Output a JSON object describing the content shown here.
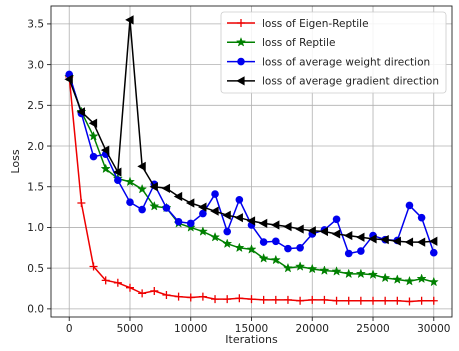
{
  "chart_data": {
    "type": "line",
    "title": "",
    "xlabel": "Iterations",
    "ylabel": "Loss",
    "xlim": [
      -1500,
      31500
    ],
    "ylim": [
      -0.1,
      3.72
    ],
    "xticks": [
      0,
      5000,
      10000,
      15000,
      20000,
      25000,
      30000
    ],
    "yticks": [
      0.0,
      0.5,
      1.0,
      1.5,
      2.0,
      2.5,
      3.0,
      3.5
    ],
    "grid": true,
    "legend_position": "top-right",
    "series": [
      {
        "name": "loss of Eigen-Reptile",
        "color": "#ee0000",
        "marker": "plus",
        "x": [
          0,
          1000,
          2000,
          3000,
          4000,
          5000,
          6000,
          7000,
          8000,
          9000,
          10000,
          11000,
          12000,
          13000,
          14000,
          15000,
          16000,
          17000,
          18000,
          19000,
          20000,
          21000,
          22000,
          23000,
          24000,
          25000,
          26000,
          27000,
          28000,
          29000,
          30000
        ],
        "y": [
          2.85,
          1.3,
          0.52,
          0.35,
          0.32,
          0.26,
          0.19,
          0.22,
          0.17,
          0.15,
          0.14,
          0.15,
          0.12,
          0.12,
          0.13,
          0.12,
          0.11,
          0.11,
          0.11,
          0.1,
          0.11,
          0.11,
          0.1,
          0.1,
          0.1,
          0.1,
          0.1,
          0.1,
          0.09,
          0.1,
          0.1
        ]
      },
      {
        "name": "loss of Reptile",
        "color": "#008000",
        "marker": "star",
        "x": [
          0,
          1000,
          2000,
          3000,
          4000,
          5000,
          6000,
          7000,
          8000,
          9000,
          10000,
          11000,
          12000,
          13000,
          14000,
          15000,
          16000,
          17000,
          18000,
          19000,
          20000,
          21000,
          22000,
          23000,
          24000,
          25000,
          26000,
          27000,
          28000,
          29000,
          30000
        ],
        "y": [
          2.85,
          2.42,
          2.12,
          1.72,
          1.6,
          1.56,
          1.47,
          1.26,
          1.24,
          1.05,
          1.0,
          0.95,
          0.88,
          0.8,
          0.75,
          0.73,
          0.62,
          0.6,
          0.5,
          0.52,
          0.49,
          0.47,
          0.46,
          0.43,
          0.43,
          0.42,
          0.38,
          0.36,
          0.34,
          0.37,
          0.33
        ]
      },
      {
        "name": "loss of average weight direction",
        "color": "#0000ee",
        "marker": "circle",
        "x": [
          0,
          1000,
          2000,
          3000,
          4000,
          5000,
          6000,
          7000,
          8000,
          9000,
          10000,
          11000,
          12000,
          13000,
          14000,
          15000,
          16000,
          17000,
          18000,
          19000,
          20000,
          21000,
          22000,
          23000,
          24000,
          25000,
          26000,
          27000,
          28000,
          29000,
          30000
        ],
        "y": [
          2.88,
          2.4,
          1.87,
          1.9,
          1.58,
          1.31,
          1.22,
          1.53,
          1.24,
          1.07,
          1.05,
          1.17,
          1.41,
          0.95,
          1.34,
          1.03,
          0.82,
          0.83,
          0.74,
          0.75,
          0.92,
          0.97,
          1.1,
          0.68,
          0.71,
          0.9,
          0.85,
          0.84,
          1.27,
          1.12,
          0.69
        ]
      },
      {
        "name": "loss of average gradient direction",
        "color": "#000000",
        "marker": "triangle-left",
        "x": [
          0,
          1000,
          2000,
          3000,
          4000,
          5000,
          6000,
          7000,
          8000,
          9000,
          10000,
          11000,
          12000,
          13000,
          14000,
          15000,
          16000,
          17000,
          18000,
          19000,
          20000,
          21000,
          22000,
          23000,
          24000,
          25000,
          26000,
          27000,
          28000,
          29000,
          30000
        ],
        "y": [
          2.82,
          2.42,
          2.28,
          1.95,
          1.68,
          3.55,
          1.75,
          1.5,
          1.48,
          1.38,
          1.3,
          1.25,
          1.2,
          1.15,
          1.12,
          1.08,
          1.05,
          1.03,
          1.01,
          0.98,
          0.96,
          0.95,
          0.92,
          0.9,
          0.88,
          0.86,
          0.85,
          0.83,
          0.82,
          0.82,
          0.83
        ]
      }
    ]
  }
}
